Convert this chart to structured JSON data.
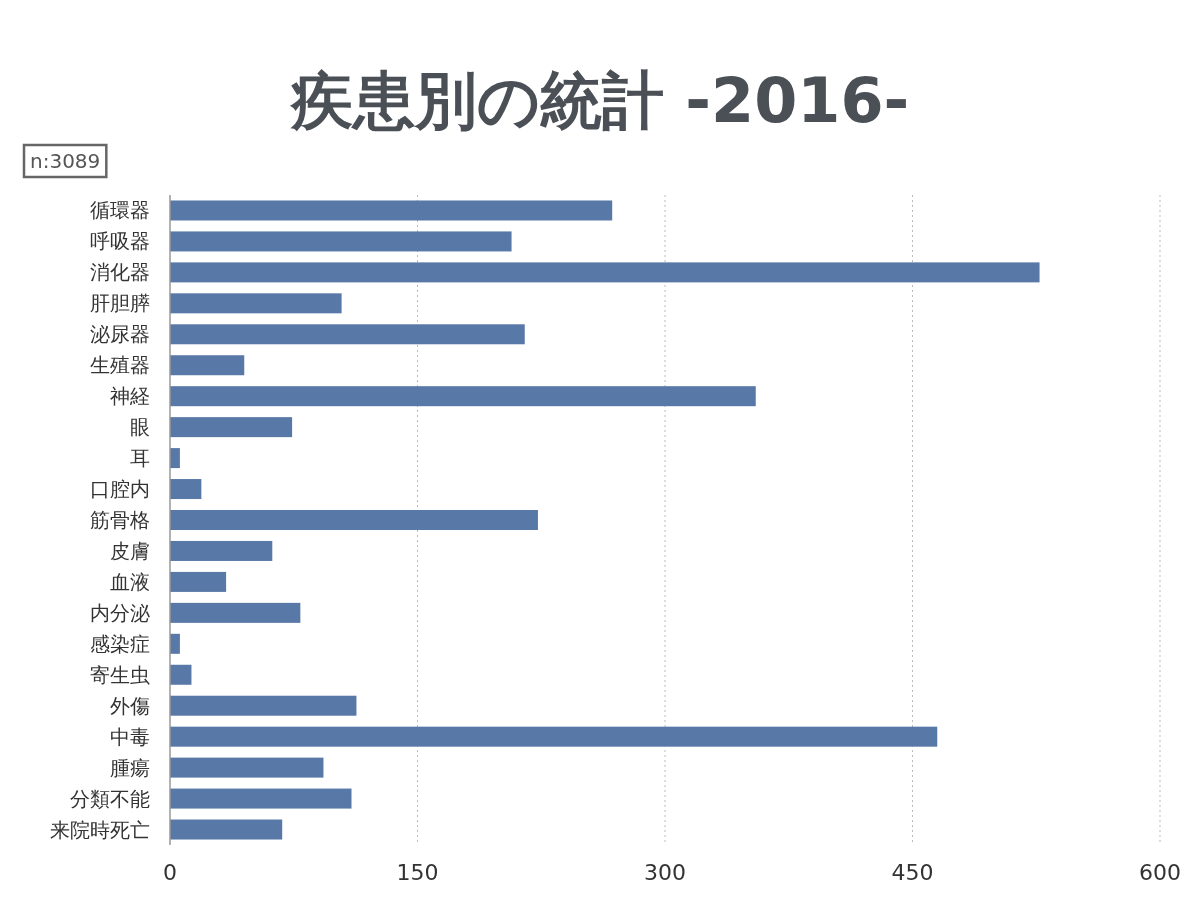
{
  "chart_data": {
    "type": "bar",
    "orientation": "horizontal",
    "title": "疾患別の統計 -2016-",
    "annotations": [
      "n:3089"
    ],
    "categories": [
      "循環器",
      "呼吸器",
      "消化器",
      "肝胆膵",
      "泌尿器",
      "生殖器",
      "神経",
      "眼",
      "耳",
      "口腔内",
      "筋骨格",
      "皮膚",
      "血液",
      "内分泌",
      "感染症",
      "寄生虫",
      "外傷",
      "中毒",
      "腫瘍",
      "分類不能",
      "来院時死亡"
    ],
    "values": [
      268,
      207,
      527,
      104,
      215,
      45,
      355,
      74,
      6,
      19,
      223,
      62,
      34,
      79,
      6,
      13,
      113,
      465,
      93,
      110,
      68
    ],
    "color": "#5878a8",
    "xlim": [
      0,
      600
    ],
    "xticks": [
      0,
      150,
      300,
      450,
      600
    ],
    "grid": "x"
  }
}
